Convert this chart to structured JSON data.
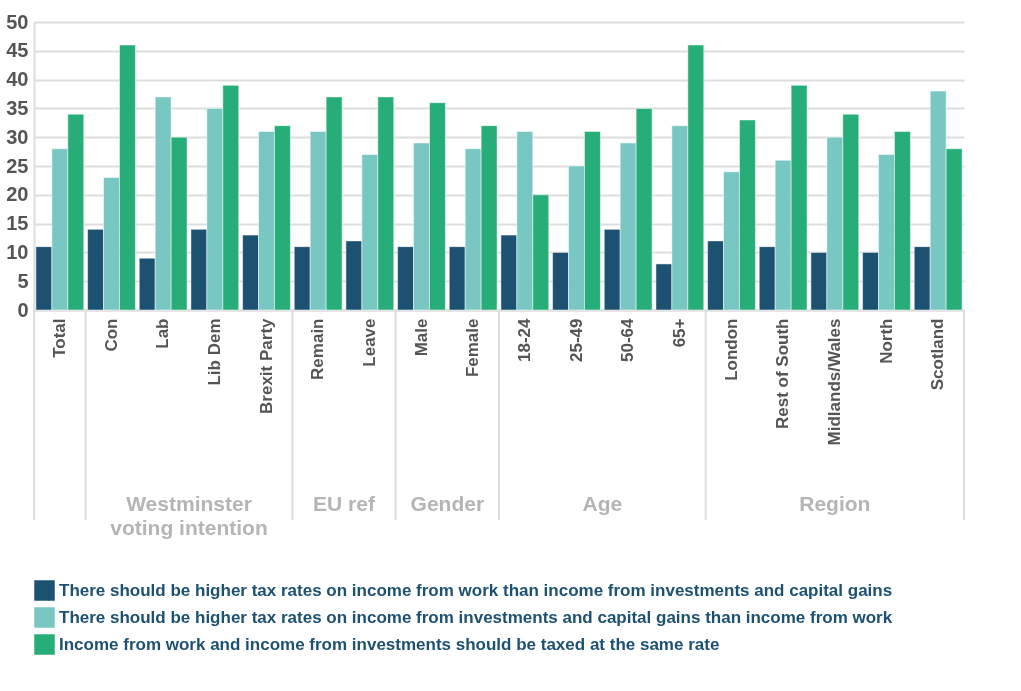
{
  "chart_data": {
    "type": "bar",
    "categories": [
      "Total",
      "Con",
      "Lab",
      "Lib Dem",
      "Brexit Party",
      "Remain",
      "Leave",
      "Male",
      "Female",
      "18-24",
      "25-49",
      "50-64",
      "65+",
      "London",
      "Rest of South",
      "Midlands/Wales",
      "North",
      "Scotland"
    ],
    "series": [
      {
        "name": "There should be higher tax rates on income from work than income from investments and capital gains",
        "color": "#1d5172",
        "values": [
          11,
          14,
          9,
          14,
          13,
          11,
          12,
          11,
          11,
          13,
          10,
          14,
          8,
          12,
          11,
          10,
          10,
          11
        ]
      },
      {
        "name": "There should be higher tax rates on income from investments and capital gains than income from work",
        "color": "#79c7c3",
        "values": [
          28,
          23,
          37,
          35,
          31,
          31,
          27,
          29,
          28,
          31,
          25,
          29,
          32,
          24,
          26,
          30,
          27,
          38
        ]
      },
      {
        "name": "Income from work and income from investments should be taxed at the same rate",
        "color": "#27ad78",
        "values": [
          34,
          46,
          30,
          39,
          32,
          37,
          37,
          36,
          32,
          20,
          31,
          35,
          46,
          33,
          39,
          34,
          31,
          28
        ]
      }
    ],
    "ylim": [
      0,
      50
    ],
    "yticks": [
      0,
      5,
      10,
      15,
      20,
      25,
      30,
      35,
      40,
      45,
      50
    ],
    "grid": "y",
    "legend": "bottom",
    "annotations": [
      "Westminster\nvoting intention",
      "EU ref",
      "Gender",
      "Age",
      "Region"
    ]
  }
}
